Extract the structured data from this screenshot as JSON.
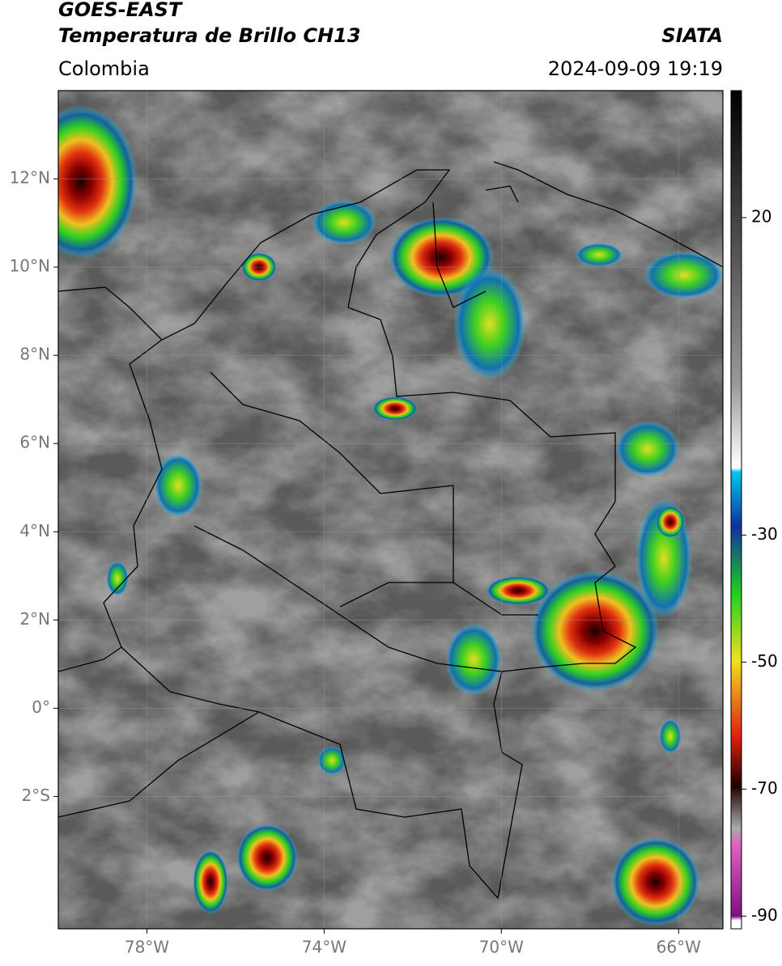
{
  "header": {
    "title": "GOES-EAST",
    "subtitle": "Temperatura de Brillo CH13",
    "region": "Colombia",
    "source": "SIATA",
    "datetime": "2024-09-09 19:19"
  },
  "map": {
    "xlim": [
      -80,
      -65
    ],
    "ylim": [
      -5,
      14
    ],
    "xticks": [
      {
        "value": -78,
        "label": "78°W"
      },
      {
        "value": -74,
        "label": "74°W"
      },
      {
        "value": -70,
        "label": "70°W"
      },
      {
        "value": -66,
        "label": "66°W"
      }
    ],
    "yticks": [
      {
        "value": 12,
        "label": "12°N"
      },
      {
        "value": 10,
        "label": "10°N"
      },
      {
        "value": 8,
        "label": "8°N"
      },
      {
        "value": 6,
        "label": "6°N"
      },
      {
        "value": 4,
        "label": "4°N"
      },
      {
        "value": 2,
        "label": "2°N"
      },
      {
        "value": 0,
        "label": "0°"
      },
      {
        "value": -2,
        "label": "2°S"
      }
    ],
    "grid": true
  },
  "colorbar": {
    "lim": [
      -92,
      40
    ],
    "ticks": [
      20,
      -30,
      -50,
      -70,
      -90
    ]
  }
}
